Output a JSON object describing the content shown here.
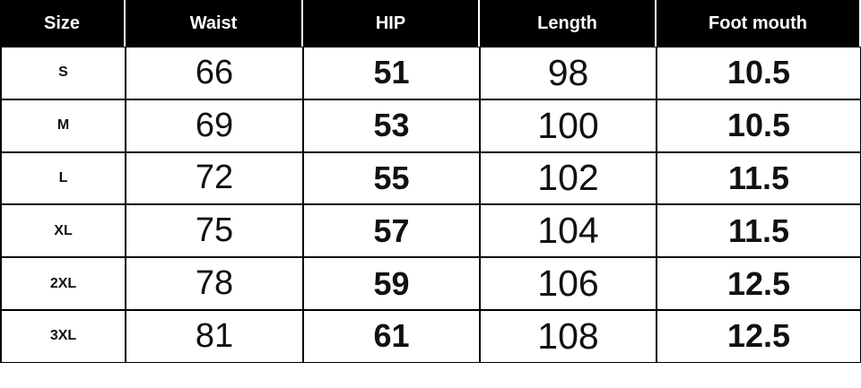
{
  "table": {
    "header": [
      "Size",
      "Waist",
      "HIP",
      "Length",
      "Foot mouth"
    ],
    "rows": [
      [
        "S",
        66,
        51,
        98,
        10.5
      ],
      [
        "M",
        69,
        53,
        100,
        10.5
      ],
      [
        "L",
        72,
        55,
        102,
        11.5
      ],
      [
        "XL",
        75,
        57,
        104,
        11.5
      ],
      [
        "2XL",
        78,
        59,
        106,
        12.5
      ],
      [
        "3XL",
        81,
        61,
        108,
        12.5
      ]
    ]
  }
}
